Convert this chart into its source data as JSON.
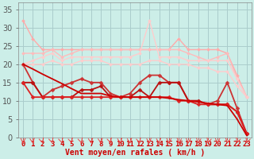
{
  "title": "Vent moyen/en rafales ( km/h )",
  "background_color": "#cceee8",
  "grid_color": "#aacccc",
  "x_labels": [
    "0",
    "1",
    "2",
    "3",
    "4",
    "5",
    "6",
    "7",
    "8",
    "9",
    "10",
    "11",
    "12",
    "13",
    "14",
    "15",
    "16",
    "17",
    "18",
    "19",
    "20",
    "21",
    "22",
    "23"
  ],
  "ylim": [
    0,
    37
  ],
  "yticks": [
    0,
    5,
    10,
    15,
    20,
    25,
    30,
    35
  ],
  "lines": [
    {
      "color": "#ffaaaa",
      "lw": 1.0,
      "marker": "D",
      "ms": 2.0,
      "y": [
        32,
        27,
        24,
        24,
        24,
        24,
        24,
        24,
        24,
        24,
        24,
        24,
        24,
        24,
        24,
        24,
        27,
        24,
        24,
        24,
        24,
        23,
        17,
        11
      ]
    },
    {
      "color": "#ffbbbb",
      "lw": 1.0,
      "marker": "D",
      "ms": 2.0,
      "y": [
        23,
        23,
        23,
        24,
        22,
        23,
        24,
        24,
        24,
        24,
        24,
        24,
        24,
        24,
        24,
        24,
        24,
        23,
        22,
        21,
        22,
        23,
        16,
        11
      ]
    },
    {
      "color": "#ffcccc",
      "lw": 1.0,
      "marker": "D",
      "ms": 2.0,
      "y": [
        20,
        21,
        22,
        23,
        21,
        22,
        22,
        22,
        22,
        22,
        22,
        22,
        23,
        32,
        22,
        22,
        22,
        21,
        21,
        21,
        21,
        21,
        16,
        11
      ]
    },
    {
      "color": "#ffcccc",
      "lw": 1.0,
      "marker": "D",
      "ms": 2.0,
      "y": [
        20,
        20,
        20,
        21,
        20,
        20,
        21,
        21,
        21,
        20,
        20,
        20,
        20,
        21,
        21,
        20,
        20,
        20,
        19,
        19,
        18,
        18,
        14,
        11
      ]
    },
    {
      "color": "#cc3333",
      "lw": 1.3,
      "marker": "D",
      "ms": 2.5,
      "y": [
        20,
        15,
        11,
        13,
        14,
        15,
        16,
        15,
        15,
        12,
        11,
        12,
        15,
        17,
        17,
        15,
        15,
        10,
        10,
        9,
        10,
        15,
        8,
        1
      ]
    },
    {
      "color": "#bb1111",
      "lw": 1.3,
      "marker": "D",
      "ms": 2.5,
      "y": [
        15,
        15,
        11,
        11,
        11,
        11,
        13,
        13,
        14,
        11,
        11,
        11,
        13,
        11,
        15,
        15,
        15,
        10,
        10,
        9,
        9,
        9,
        7,
        1
      ]
    },
    {
      "color": "#dd2222",
      "lw": 1.3,
      "marker": "D",
      "ms": 2.5,
      "y": [
        15,
        11,
        11,
        11,
        11,
        11,
        11,
        11,
        11,
        11,
        11,
        11,
        11,
        11,
        11,
        11,
        10,
        10,
        9,
        9,
        9,
        9,
        7,
        1
      ]
    },
    {
      "color": "#cc0000",
      "lw": 1.3,
      "marker": "none",
      "ms": 0,
      "y": [
        20,
        18.7,
        17.3,
        16.0,
        14.7,
        13.3,
        12.0,
        12.0,
        12.0,
        11.3,
        11.0,
        11.0,
        11.0,
        11.0,
        11.0,
        10.7,
        10.3,
        10.0,
        9.7,
        9.3,
        9.0,
        8.7,
        5.0,
        0.5
      ]
    }
  ],
  "arrow_color": "#ee4444",
  "arrow_angles": [
    0,
    15,
    30,
    30,
    30,
    30,
    30,
    15,
    15,
    30,
    15,
    15,
    30,
    15,
    15,
    0,
    -15,
    0,
    -15,
    -30,
    0,
    -15,
    -30,
    -30
  ],
  "xlabel_color": "#cc0000",
  "tick_color": "#cc0000",
  "xlabel_fontsize": 6.5,
  "ylabel_fontsize": 7
}
